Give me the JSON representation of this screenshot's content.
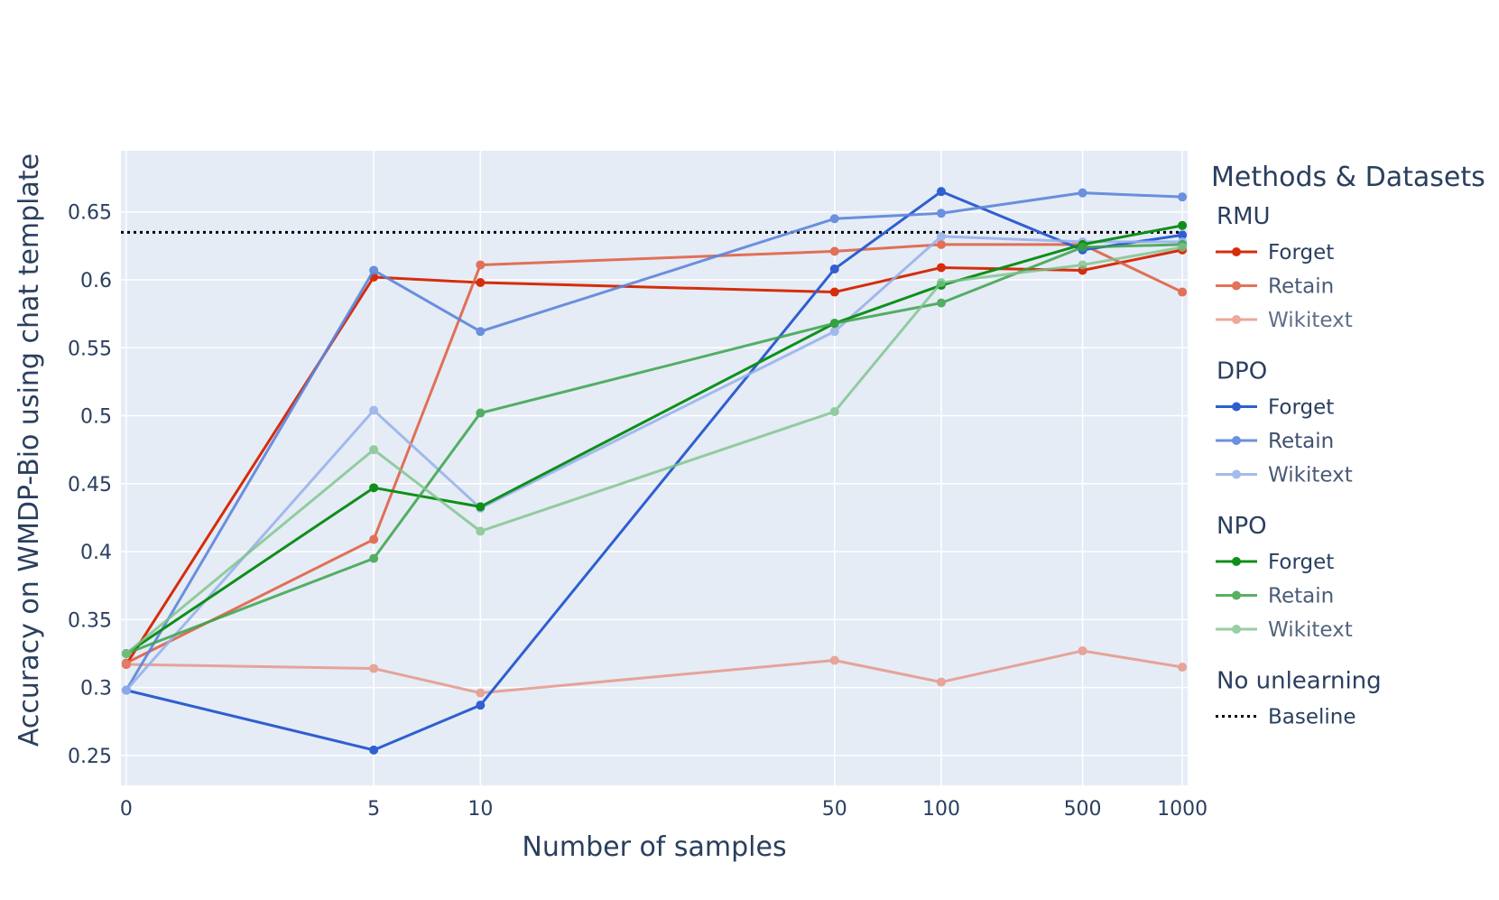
{
  "chart_data": {
    "type": "line",
    "xlabel": "Number of samples",
    "ylabel": "Accuracy on WMDP-Bio using chat template",
    "x": [
      0,
      5,
      10,
      50,
      100,
      500,
      1000
    ],
    "x_tick_labels": [
      "0",
      "5",
      "10",
      "50",
      "100",
      "500",
      "1000"
    ],
    "y_ticks": [
      0.25,
      0.3,
      0.35,
      0.4,
      0.45,
      0.5,
      0.55,
      0.6,
      0.65
    ],
    "y_tick_labels": [
      "0.25",
      "0.3",
      "0.35",
      "0.4",
      "0.45",
      "0.5",
      "0.55",
      "0.6",
      "0.65"
    ],
    "ylim": [
      0.228,
      0.695
    ],
    "grid": true,
    "plot_background": "#e5ecf6",
    "legend": {
      "title": "Methods & Datasets",
      "placement": "right"
    },
    "groups": [
      {
        "name": "RMU",
        "series": [
          {
            "name": "Forget",
            "color": "#d62d0b",
            "opacity": 1.0,
            "values": [
              0.317,
              0.602,
              0.598,
              0.591,
              0.609,
              0.607,
              0.622
            ]
          },
          {
            "name": "Retain",
            "color": "#e05a3c",
            "opacity": 0.85,
            "values": [
              0.318,
              0.409,
              0.611,
              0.621,
              0.626,
              0.626,
              0.591
            ]
          },
          {
            "name": "Wikitext",
            "color": "#e58b7a",
            "opacity": 0.75,
            "values": [
              0.317,
              0.314,
              0.296,
              0.32,
              0.304,
              0.327,
              0.315
            ]
          }
        ]
      },
      {
        "name": "DPO",
        "series": [
          {
            "name": "Forget",
            "color": "#2f5fd0",
            "opacity": 1.0,
            "values": [
              0.298,
              0.254,
              0.287,
              0.608,
              0.665,
              0.622,
              0.633
            ]
          },
          {
            "name": "Retain",
            "color": "#5c85db",
            "opacity": 0.9,
            "values": [
              0.298,
              0.607,
              0.562,
              0.645,
              0.649,
              0.664,
              0.661
            ]
          },
          {
            "name": "Wikitext",
            "color": "#95b0ea",
            "opacity": 0.85,
            "values": [
              0.298,
              0.504,
              0.432,
              0.562,
              0.632,
              0.628,
              0.628
            ]
          }
        ]
      },
      {
        "name": "NPO",
        "series": [
          {
            "name": "Forget",
            "color": "#0f8f1a",
            "opacity": 1.0,
            "values": [
              0.325,
              0.447,
              0.433,
              0.568,
              0.596,
              0.626,
              0.64
            ]
          },
          {
            "name": "Retain",
            "color": "#3aa34a",
            "opacity": 0.85,
            "values": [
              0.325,
              0.395,
              0.502,
              0.568,
              0.583,
              0.624,
              0.626
            ]
          },
          {
            "name": "Wikitext",
            "color": "#7cc48a",
            "opacity": 0.8,
            "values": [
              0.325,
              0.475,
              0.415,
              0.503,
              0.598,
              0.611,
              0.624
            ]
          }
        ]
      }
    ],
    "baseline": {
      "group": "No unlearning",
      "name": "Baseline",
      "value": 0.635,
      "color": "#000000",
      "style": "dotted"
    }
  }
}
